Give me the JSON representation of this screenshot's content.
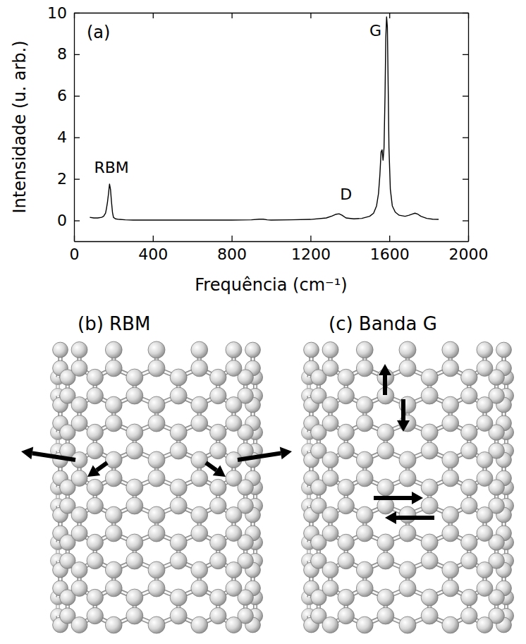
{
  "chart_data": {
    "type": "line",
    "panel_label": "(a)",
    "x_label": "Frequência (cm⁻¹)",
    "y_label": "Intensidade (u. arb.)",
    "color": "#000000",
    "xlim": [
      0,
      2000
    ],
    "xticks": [
      0,
      400,
      800,
      1200,
      1600,
      2000
    ],
    "ylim": [
      -1,
      10
    ],
    "yticks": [
      0,
      2,
      4,
      6,
      8,
      10
    ],
    "grid": false,
    "x": [
      80,
      100,
      120,
      140,
      150,
      160,
      165,
      170,
      175,
      180,
      185,
      190,
      195,
      200,
      210,
      230,
      260,
      300,
      400,
      500,
      600,
      700,
      800,
      900,
      940,
      960,
      980,
      1000,
      1100,
      1200,
      1280,
      1310,
      1330,
      1345,
      1360,
      1380,
      1420,
      1460,
      1500,
      1520,
      1535,
      1545,
      1552,
      1558,
      1563,
      1568,
      1573,
      1578,
      1582,
      1586,
      1590,
      1594,
      1598,
      1605,
      1615,
      1630,
      1650,
      1680,
      1700,
      1715,
      1730,
      1745,
      1760,
      1790,
      1820,
      1850
    ],
    "values": [
      0.15,
      0.12,
      0.12,
      0.15,
      0.2,
      0.35,
      0.6,
      0.9,
      1.3,
      1.75,
      1.5,
      0.9,
      0.4,
      0.15,
      0.08,
      0.05,
      0.03,
      0.02,
      0.02,
      0.02,
      0.02,
      0.02,
      0.02,
      0.03,
      0.06,
      0.06,
      0.03,
      0.02,
      0.03,
      0.05,
      0.12,
      0.22,
      0.3,
      0.32,
      0.25,
      0.12,
      0.08,
      0.1,
      0.2,
      0.35,
      0.7,
      1.3,
      2.2,
      3.3,
      3.4,
      2.9,
      3.5,
      6.0,
      8.8,
      9.8,
      9.3,
      6.5,
      3.5,
      1.5,
      0.7,
      0.4,
      0.25,
      0.2,
      0.25,
      0.3,
      0.35,
      0.3,
      0.2,
      0.1,
      0.06,
      0.05
    ],
    "annotations": [
      {
        "text": "RBM",
        "x": 190,
        "y": 2.5
      },
      {
        "text": "D",
        "x": 1380,
        "y": 1.2
      },
      {
        "text": "G",
        "x": 1530,
        "y": 9.1
      }
    ]
  },
  "panels": [
    {
      "title": "(b) RBM"
    },
    {
      "title": "(c) Banda G"
    }
  ]
}
